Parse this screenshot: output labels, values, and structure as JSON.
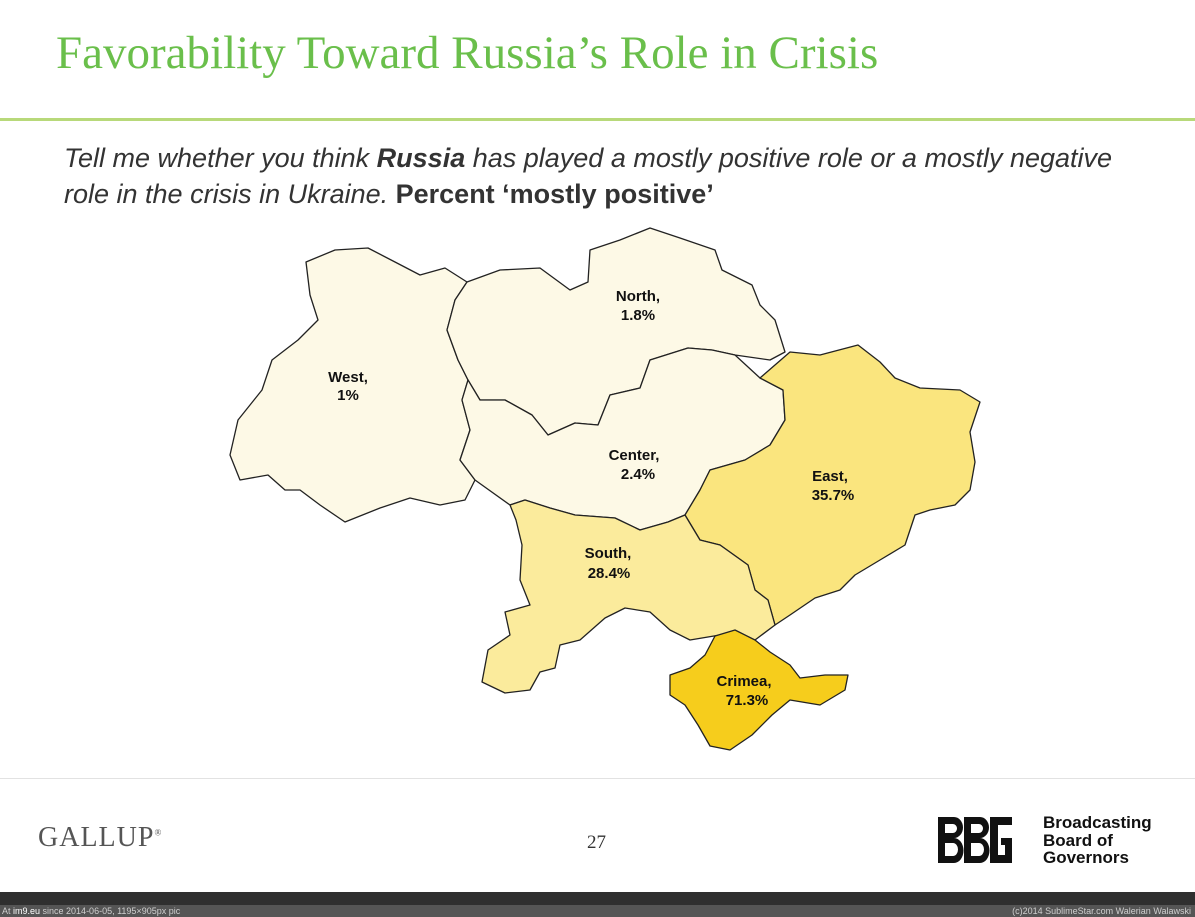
{
  "title": "Favorability Toward Russia’s Role in Crisis",
  "question": {
    "part1": "Tell me whether you think ",
    "bold": "Russia",
    "part2": " has played a mostly positive role or a mostly negative role in the crisis in Ukraine. ",
    "percent_label": "Percent ‘mostly positive’"
  },
  "regions": [
    {
      "name": "West",
      "label": "West,",
      "value": "1%",
      "fill": "#fdf9e6"
    },
    {
      "name": "North",
      "label": "North,",
      "value": "1.8%",
      "fill": "#fdf9e6"
    },
    {
      "name": "Center",
      "label": "Center,",
      "value": "2.4%",
      "fill": "#fdf9e6"
    },
    {
      "name": "East",
      "label": "East,",
      "value": "35.7%",
      "fill": "#fae57e"
    },
    {
      "name": "South",
      "label": "South,",
      "value": "28.4%",
      "fill": "#fbeb9c"
    },
    {
      "name": "Crimea",
      "label": "Crimea,",
      "value": "71.3%",
      "fill": "#f6cd1c"
    }
  ],
  "footer": {
    "gallup": "GALLUP",
    "gallup_mark": "®",
    "page_number": "27",
    "bbg_logo": "BBG",
    "bbg_lines": [
      "Broadcasting",
      "Board of",
      "Governors"
    ]
  },
  "watermark": {
    "site": "im9.eu",
    "left_prefix": "At ",
    "left_text": " since 2014-06-05, 1195×905px pic",
    "right_text": "(c)2014 SublimeStar.com Walerian Walawski"
  }
}
